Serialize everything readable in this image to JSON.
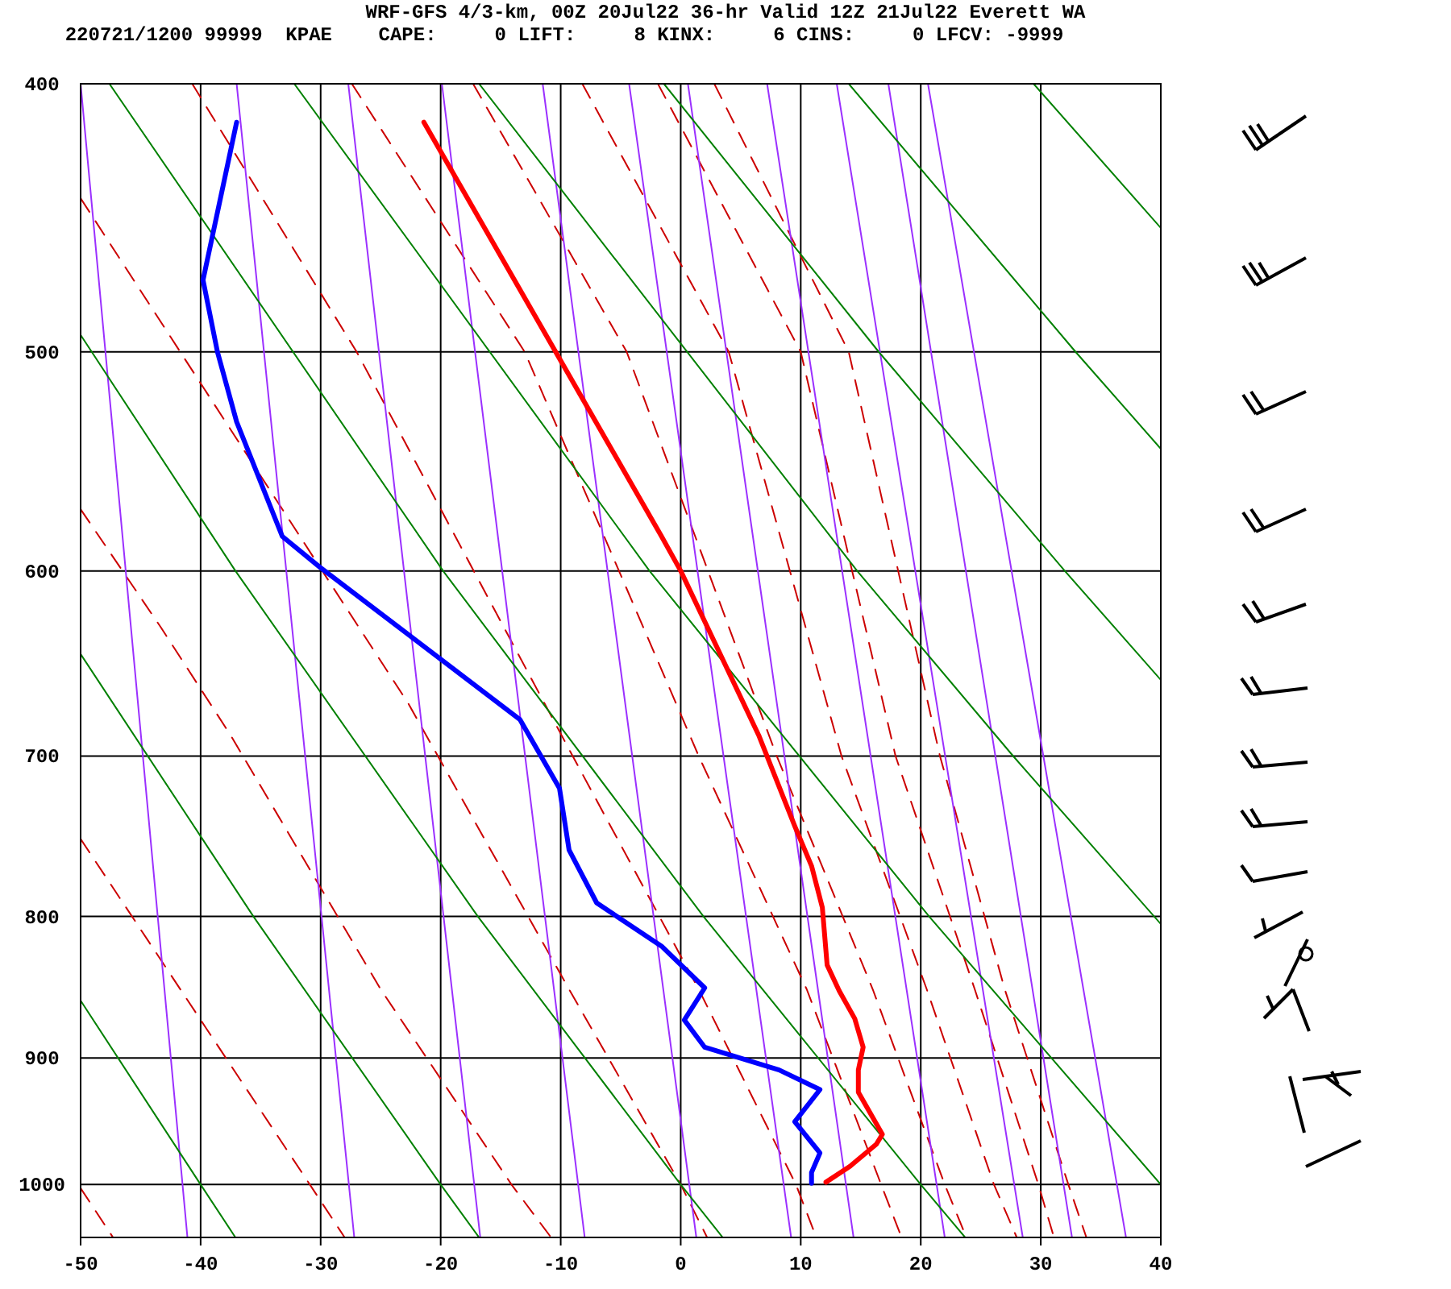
{
  "chart_data": {
    "type": "line",
    "title": "WRF-GFS 4/3-km, 00Z 20Jul22 36-hr Valid 12Z 21Jul22 Everett WA",
    "subtitle": "220721/1200 99999  KPAE    CAPE:     0 LIFT:     8 KINX:     6 CINS:     0 LFCV: -9999",
    "xlim": [
      -50,
      40
    ],
    "xticks": [
      -50,
      -40,
      -30,
      -20,
      -10,
      0,
      10,
      20,
      30,
      40
    ],
    "ylim": [
      1045,
      400
    ],
    "yticks": [
      400,
      500,
      600,
      700,
      800,
      900,
      1000
    ],
    "log": true,
    "grid": true,
    "series": [
      {
        "color": "#ff0000",
        "x": [
          -21.4,
          -1.6,
          0.0,
          6.5,
          9.5,
          10.9,
          11.8,
          12.2,
          13.2,
          14.5,
          15.2,
          14.8,
          14.8,
          15.9,
          16.8,
          16.3,
          14.1,
          12.1
        ],
        "values": [
          413,
          583,
          600,
          688,
          742,
          767,
          794,
          833,
          851,
          871,
          892,
          909,
          926,
          944,
          959,
          967,
          985,
          998
        ]
      },
      {
        "color": "#0000ff",
        "x": [
          -37.0,
          -39.8,
          -38.6,
          -37.0,
          -33.2,
          -30.1,
          -13.4,
          -10.1,
          -9.3,
          -7.0,
          -1.6,
          2.0,
          0.3,
          2.0,
          8.2,
          11.6,
          9.5,
          11.6,
          10.9,
          10.9
        ],
        "values": [
          413,
          471,
          500,
          530,
          583,
          598,
          679,
          719,
          757,
          791,
          820,
          849,
          872,
          892,
          909,
          924,
          949,
          974,
          990,
          999
        ]
      },
      {
        "color": "#008000",
        "x": [
          -50,
          -40,
          -37.1
        ],
        "values": [
          858,
          1000,
          1045
        ]
      },
      {
        "color": "#008000",
        "x": [
          -50,
          -35.6,
          -20,
          -16.8
        ],
        "values": [
          643,
          800,
          1000,
          1045
        ]
      },
      {
        "color": "#008000",
        "x": [
          -50,
          -37.1,
          -16.9,
          0,
          3.5
        ],
        "values": [
          493,
          600,
          800,
          1000,
          1045
        ]
      },
      {
        "color": "#008000",
        "x": [
          -47.6,
          -19.8,
          1.9,
          20,
          23.7
        ],
        "values": [
          400,
          600,
          800,
          1000,
          1045
        ]
      },
      {
        "color": "#008000",
        "x": [
          -32.2,
          -2.6,
          20.7,
          40
        ],
        "values": [
          400,
          600,
          800,
          1000
        ]
      },
      {
        "color": "#008000",
        "x": [
          -16.8,
          14.7,
          27.7,
          40
        ],
        "values": [
          400,
          600,
          700,
          805
        ]
      },
      {
        "color": "#008000",
        "x": [
          -1.4,
          16.5,
          32.0,
          40
        ],
        "values": [
          400,
          500,
          600,
          657
        ]
      },
      {
        "color": "#008000",
        "x": [
          14.0,
          32.9,
          40
        ],
        "values": [
          400,
          500,
          542
        ]
      },
      {
        "color": "#008000",
        "x": [
          29.4,
          40
        ],
        "values": [
          400,
          451
        ]
      },
      {
        "color": "#9b30ff",
        "x": [
          -50,
          -41.1
        ],
        "values": [
          400,
          1045
        ]
      },
      {
        "color": "#9b30ff",
        "x": [
          -37.0,
          -27.2
        ],
        "values": [
          400,
          1045
        ]
      },
      {
        "color": "#9b30ff",
        "x": [
          -27.7,
          -16.7
        ],
        "values": [
          400,
          1045
        ]
      },
      {
        "color": "#9b30ff",
        "x": [
          -19.9,
          -8.0
        ],
        "values": [
          400,
          1045
        ]
      },
      {
        "color": "#9b30ff",
        "x": [
          -11.5,
          1.3
        ],
        "values": [
          400,
          1045
        ]
      },
      {
        "color": "#9b30ff",
        "x": [
          -4.3,
          9.2
        ],
        "values": [
          400,
          1045
        ]
      },
      {
        "color": "#9b30ff",
        "x": [
          0.6,
          14.4
        ],
        "values": [
          400,
          1045
        ]
      },
      {
        "color": "#9b30ff",
        "x": [
          7.2,
          22.0
        ],
        "values": [
          400,
          1045
        ]
      },
      {
        "color": "#9b30ff",
        "x": [
          13.0,
          28.5
        ],
        "values": [
          400,
          1045
        ]
      },
      {
        "color": "#9b30ff",
        "x": [
          17.3,
          32.6
        ],
        "values": [
          400,
          1045
        ]
      },
      {
        "color": "#9b30ff",
        "x": [
          20.6,
          37.1
        ],
        "values": [
          400,
          1045
        ]
      },
      {
        "color": "#cc0000",
        "line_style": "dashed",
        "x": [
          -50,
          -47.3
        ],
        "values": [
          1003,
          1045
        ]
      },
      {
        "color": "#cc0000",
        "line_style": "dashed",
        "x": [
          -50,
          -30.9,
          -28.0
        ],
        "values": [
          750,
          1000,
          1045
        ]
      },
      {
        "color": "#cc0000",
        "line_style": "dashed",
        "x": [
          -50,
          -43.3,
          -37.5,
          -25,
          -14.1,
          -10.8
        ],
        "values": [
          570,
          629,
          688,
          850,
          1000,
          1045
        ]
      },
      {
        "color": "#cc0000",
        "line_style": "dashed",
        "x": [
          -50,
          -41.7,
          -22.7,
          -9.3,
          0,
          2.2
        ],
        "values": [
          440,
          500,
          670,
          850,
          1000,
          1045
        ]
      },
      {
        "color": "#cc0000",
        "line_style": "dashed",
        "x": [
          -40.7,
          -27,
          -9,
          1.5,
          9.6,
          11.3
        ],
        "values": [
          400,
          500,
          700,
          850,
          1000,
          1045
        ]
      },
      {
        "color": "#cc0000",
        "line_style": "dashed",
        "x": [
          -27.4,
          -13,
          1.5,
          10.5,
          16.7,
          18.4
        ],
        "values": [
          400,
          500,
          700,
          850,
          1000,
          1045
        ]
      },
      {
        "color": "#cc0000",
        "line_style": "dashed",
        "x": [
          -17.3,
          -4.5,
          8,
          16,
          22,
          23.8
        ],
        "values": [
          400,
          500,
          700,
          850,
          1000,
          1045
        ]
      },
      {
        "color": "#cc0000",
        "line_style": "dashed",
        "x": [
          -8.2,
          4,
          13.4,
          20.5,
          26.1,
          28.0
        ],
        "values": [
          400,
          500,
          700,
          850,
          1000,
          1045
        ]
      },
      {
        "color": "#cc0000",
        "line_style": "dashed",
        "x": [
          -1.9,
          10,
          17.9,
          24.5,
          29.8,
          31.1
        ],
        "values": [
          400,
          500,
          700,
          850,
          1000,
          1045
        ]
      },
      {
        "color": "#cc0000",
        "line_style": "dashed",
        "x": [
          2.8,
          14,
          21.6,
          27,
          32.3,
          33.8
        ],
        "values": [
          400,
          500,
          700,
          850,
          1000,
          1045
        ]
      }
    ]
  }
}
